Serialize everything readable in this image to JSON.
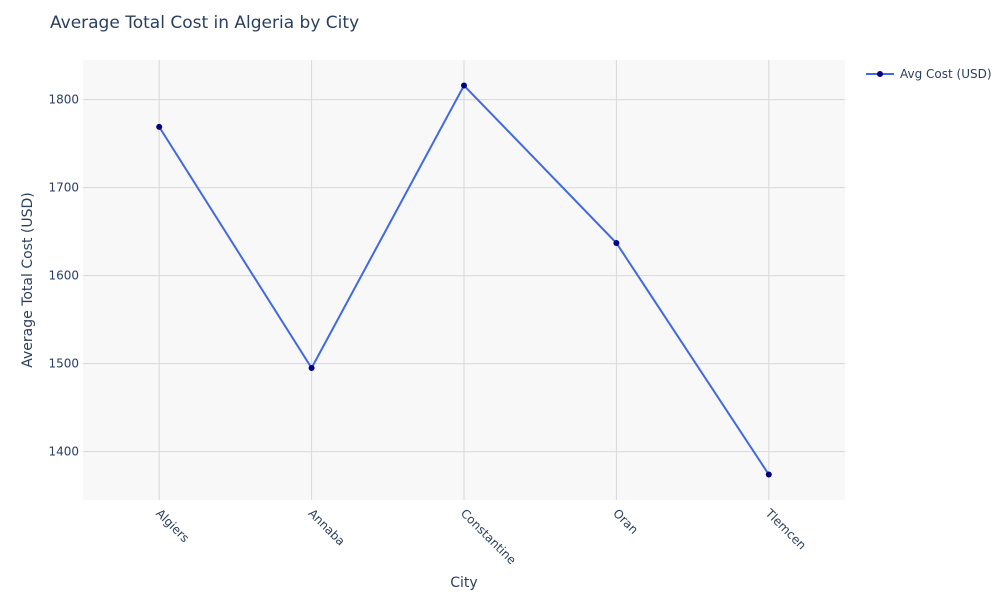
{
  "chart_data": {
    "type": "line",
    "title": "Average Total Cost in Algeria by City",
    "xlabel": "City",
    "ylabel": "Average Total Cost (USD)",
    "categories": [
      "Algiers",
      "Annaba",
      "Constantine",
      "Oran",
      "Tlemcen"
    ],
    "series": [
      {
        "name": "Avg Cost (USD)",
        "values": [
          1769,
          1495,
          1816,
          1637,
          1374
        ]
      }
    ],
    "ylim": [
      1345,
      1845
    ],
    "yticks": [
      1400,
      1500,
      1600,
      1700,
      1800
    ],
    "grid": true,
    "legend": "top-right",
    "colors": {
      "line": "#4169e1",
      "marker": "#000080",
      "plot_bg": "#f8f8f8",
      "grid": "#d9d9d9"
    }
  }
}
